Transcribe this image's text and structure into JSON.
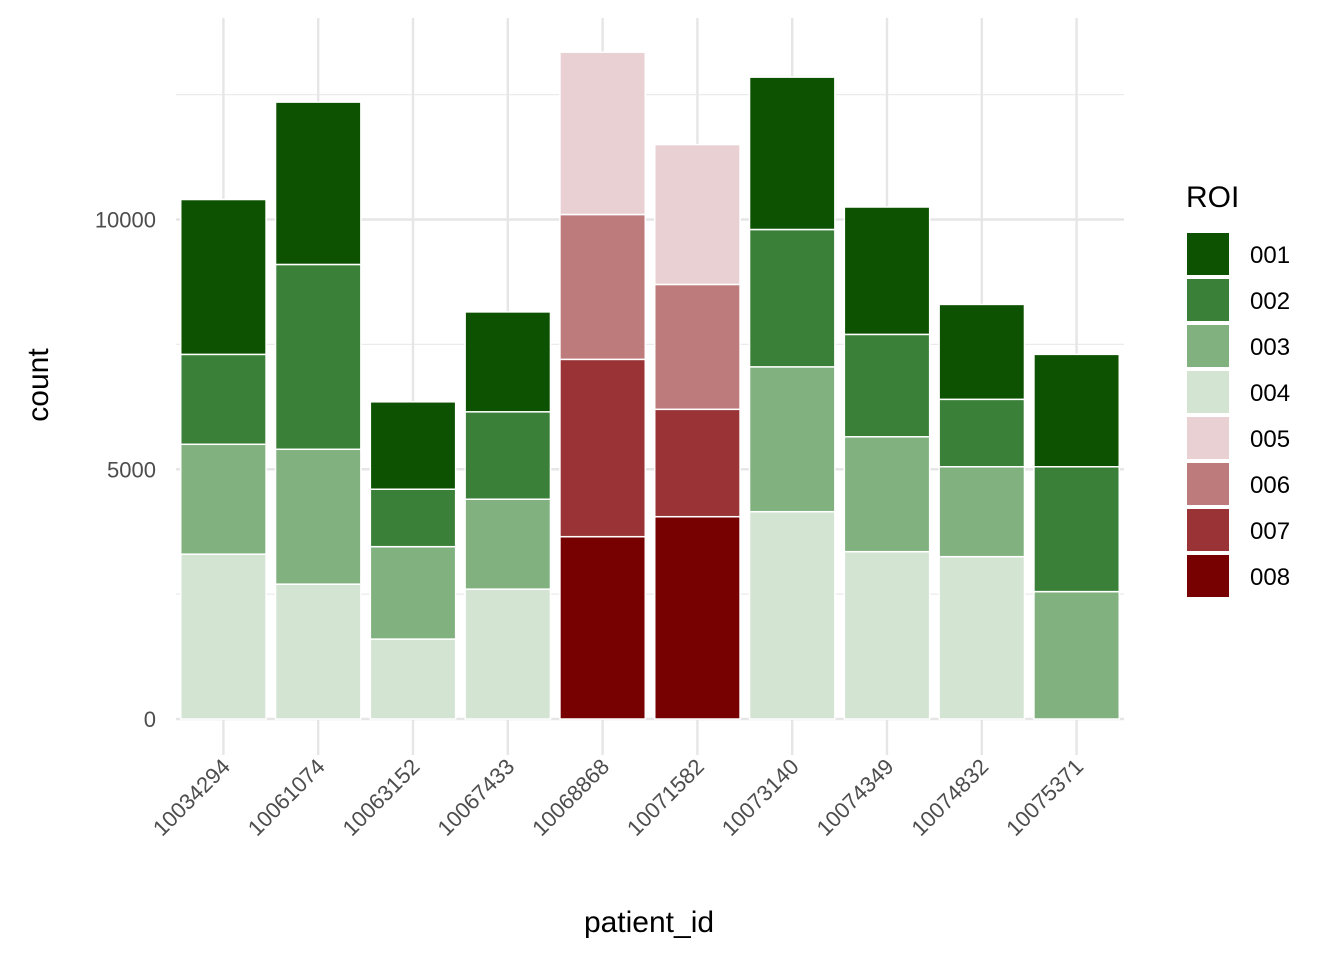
{
  "chart_data": {
    "type": "bar",
    "stacked": true,
    "xlabel": "patient_id",
    "ylabel": "count",
    "ylim": [
      -50,
      13400
    ],
    "y_ticks": [
      0,
      5000,
      10000
    ],
    "grid": true,
    "legend": {
      "title": "ROI",
      "placement": "right"
    },
    "categories": [
      "10034294",
      "10061074",
      "10063152",
      "10067433",
      "10068868",
      "10071582",
      "10073140",
      "10074349",
      "10074832",
      "10075371"
    ],
    "series": [
      {
        "name": "001",
        "color": "#0c5200",
        "values": [
          3100,
          3250,
          1750,
          2000,
          0,
          0,
          3050,
          2550,
          1900,
          2250
        ]
      },
      {
        "name": "002",
        "color": "#3b8039",
        "values": [
          1800,
          3700,
          1150,
          1750,
          0,
          0,
          2750,
          2050,
          1350,
          2500
        ]
      },
      {
        "name": "003",
        "color": "#80b17e",
        "values": [
          2200,
          2700,
          1850,
          1800,
          0,
          0,
          2900,
          2300,
          1800,
          2550
        ]
      },
      {
        "name": "004",
        "color": "#d3e4d3",
        "values": [
          3300,
          2700,
          1600,
          2600,
          0,
          0,
          4150,
          3350,
          3250,
          0
        ]
      },
      {
        "name": "005",
        "color": "#e9d1d3",
        "values": [
          0,
          0,
          0,
          0,
          3250,
          2800,
          0,
          0,
          0,
          0
        ]
      },
      {
        "name": "006",
        "color": "#be7b7c",
        "values": [
          0,
          0,
          0,
          0,
          2900,
          2500,
          0,
          0,
          0,
          0
        ]
      },
      {
        "name": "007",
        "color": "#993336",
        "values": [
          0,
          0,
          0,
          0,
          3550,
          2150,
          0,
          0,
          0,
          0
        ]
      },
      {
        "name": "008",
        "color": "#770000",
        "values": [
          0,
          0,
          0,
          0,
          3650,
          4050,
          0,
          0,
          0,
          0
        ]
      }
    ],
    "stack_order_bottom_to_top": [
      "008",
      "007",
      "006",
      "005",
      "004",
      "003",
      "002",
      "001"
    ]
  }
}
